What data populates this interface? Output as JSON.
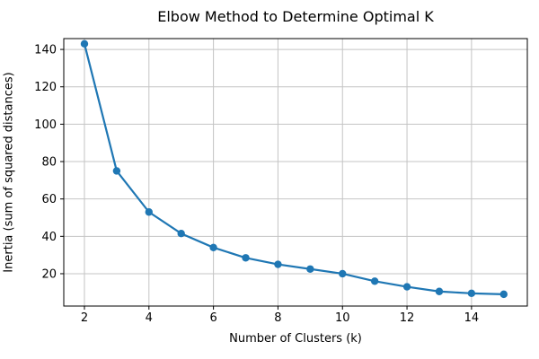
{
  "chart_data": {
    "type": "line",
    "title": "Elbow Method to Determine Optimal K",
    "xlabel": "Number of Clusters (k)",
    "ylabel": "Inertia (sum of squared distances)",
    "series": [
      {
        "name": "inertia",
        "x": [
          2,
          3,
          4,
          5,
          6,
          7,
          8,
          9,
          10,
          11,
          12,
          13,
          14,
          15
        ],
        "y": [
          143,
          75,
          53,
          41.5,
          34,
          28.5,
          25,
          22.5,
          20,
          16,
          13,
          10.5,
          9.5,
          9
        ]
      }
    ],
    "xticks": [
      2,
      4,
      6,
      8,
      10,
      12,
      14
    ],
    "yticks": [
      20,
      40,
      60,
      80,
      100,
      120,
      140
    ],
    "xlim": [
      1.36,
      15.73
    ],
    "ylim": [
      2.7,
      145.8
    ],
    "grid": true,
    "legend_position": "none",
    "colors": {
      "line": "#1f77b4",
      "marker": "#1f77b4",
      "grid": "#c4c4c4",
      "spine": "#000000",
      "background": "#ffffff"
    },
    "marker_style": "circle"
  }
}
